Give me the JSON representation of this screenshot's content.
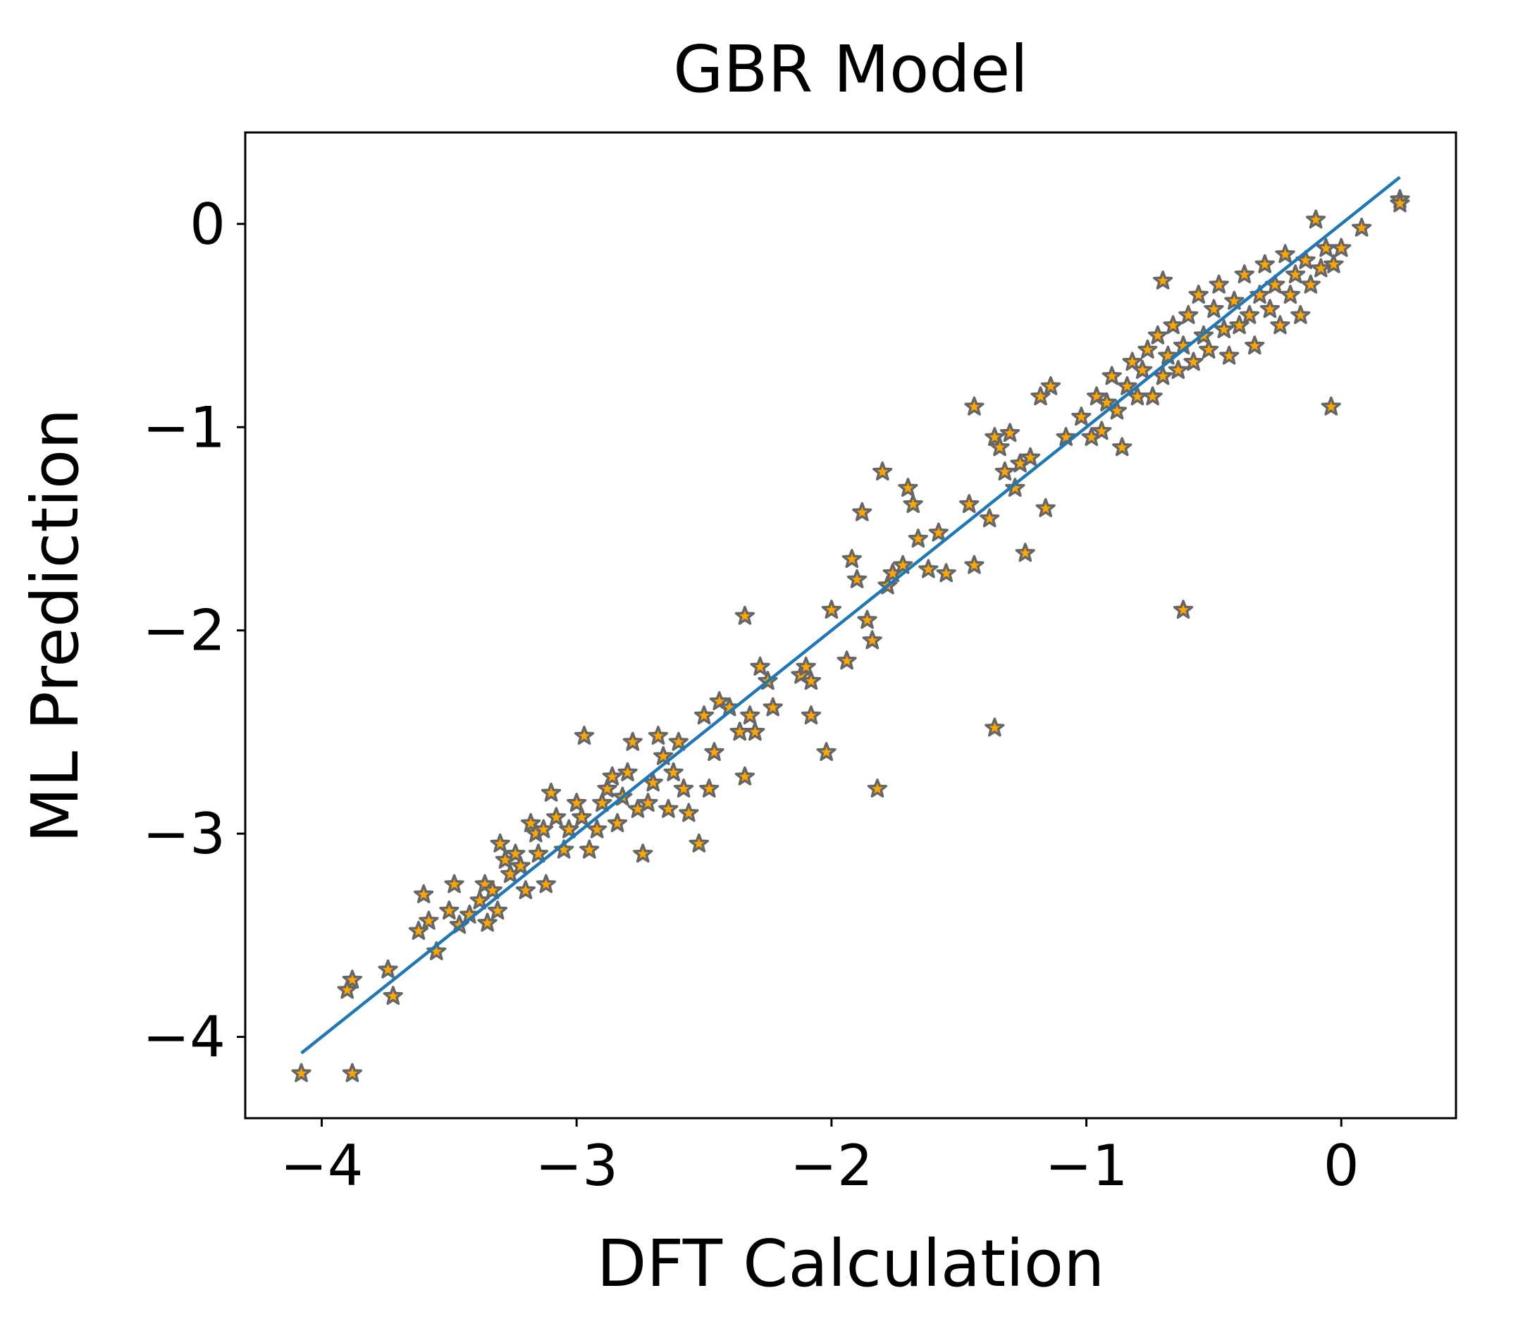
{
  "chart_data": {
    "type": "scatter",
    "title": "GBR Model",
    "xlabel": "DFT Calculation",
    "ylabel": "ML Prediction",
    "xlim": [
      -4.3,
      0.45
    ],
    "ylim": [
      -4.4,
      0.45
    ],
    "xticks": [
      -4,
      -3,
      -2,
      -1,
      0
    ],
    "yticks": [
      -4,
      -3,
      -2,
      -1,
      0
    ],
    "xtick_labels": [
      "−4",
      "−3",
      "−2",
      "−1",
      "0"
    ],
    "ytick_labels": [
      "−4",
      "−3",
      "−2",
      "−1",
      "0"
    ],
    "grid": false,
    "legend": "none",
    "marker": "star",
    "marker_fill": "#ffa500",
    "marker_edge": "#666666",
    "line_color": "#1f77b4",
    "fit_line": {
      "x": [
        -4.08,
        0.23
      ],
      "y": [
        -4.08,
        0.23
      ]
    },
    "points": [
      [
        -4.08,
        -4.18
      ],
      [
        -3.88,
        -4.18
      ],
      [
        -3.88,
        -3.72
      ],
      [
        -3.9,
        -3.77
      ],
      [
        -3.72,
        -3.8
      ],
      [
        -3.74,
        -3.67
      ],
      [
        -3.62,
        -3.48
      ],
      [
        -3.6,
        -3.3
      ],
      [
        -3.58,
        -3.43
      ],
      [
        -3.55,
        -3.58
      ],
      [
        -3.5,
        -3.38
      ],
      [
        -3.48,
        -3.25
      ],
      [
        -3.46,
        -3.45
      ],
      [
        -3.42,
        -3.4
      ],
      [
        -3.38,
        -3.33
      ],
      [
        -3.36,
        -3.25
      ],
      [
        -3.35,
        -3.44
      ],
      [
        -3.33,
        -3.28
      ],
      [
        -3.31,
        -3.38
      ],
      [
        -3.3,
        -3.05
      ],
      [
        -3.28,
        -3.13
      ],
      [
        -3.26,
        -3.2
      ],
      [
        -3.24,
        -3.1
      ],
      [
        -3.22,
        -3.16
      ],
      [
        -3.2,
        -3.28
      ],
      [
        -3.18,
        -2.95
      ],
      [
        -3.16,
        -3.0
      ],
      [
        -3.15,
        -3.1
      ],
      [
        -3.13,
        -2.98
      ],
      [
        -3.12,
        -3.25
      ],
      [
        -3.1,
        -2.8
      ],
      [
        -3.08,
        -2.92
      ],
      [
        -3.05,
        -3.08
      ],
      [
        -3.03,
        -2.98
      ],
      [
        -3.0,
        -2.85
      ],
      [
        -2.98,
        -2.92
      ],
      [
        -2.97,
        -2.52
      ],
      [
        -2.95,
        -3.08
      ],
      [
        -2.92,
        -2.98
      ],
      [
        -2.9,
        -2.85
      ],
      [
        -2.88,
        -2.78
      ],
      [
        -2.86,
        -2.72
      ],
      [
        -2.84,
        -2.95
      ],
      [
        -2.82,
        -2.82
      ],
      [
        -2.8,
        -2.7
      ],
      [
        -2.78,
        -2.55
      ],
      [
        -2.76,
        -2.88
      ],
      [
        -2.74,
        -3.1
      ],
      [
        -2.72,
        -2.85
      ],
      [
        -2.7,
        -2.75
      ],
      [
        -2.68,
        -2.52
      ],
      [
        -2.66,
        -2.62
      ],
      [
        -2.64,
        -2.88
      ],
      [
        -2.62,
        -2.7
      ],
      [
        -2.6,
        -2.55
      ],
      [
        -2.58,
        -2.78
      ],
      [
        -2.56,
        -2.9
      ],
      [
        -2.52,
        -3.05
      ],
      [
        -2.5,
        -2.42
      ],
      [
        -2.48,
        -2.78
      ],
      [
        -2.46,
        -2.6
      ],
      [
        -2.44,
        -2.35
      ],
      [
        -2.4,
        -2.38
      ],
      [
        -2.36,
        -2.5
      ],
      [
        -2.34,
        -2.72
      ],
      [
        -2.34,
        -1.93
      ],
      [
        -2.32,
        -2.42
      ],
      [
        -2.3,
        -2.5
      ],
      [
        -2.28,
        -2.18
      ],
      [
        -2.25,
        -2.25
      ],
      [
        -2.23,
        -2.38
      ],
      [
        -2.12,
        -2.22
      ],
      [
        -2.1,
        -2.18
      ],
      [
        -2.08,
        -2.25
      ],
      [
        -2.08,
        -2.42
      ],
      [
        -2.02,
        -2.6
      ],
      [
        -2.0,
        -1.9
      ],
      [
        -1.94,
        -2.15
      ],
      [
        -1.92,
        -1.65
      ],
      [
        -1.9,
        -1.75
      ],
      [
        -1.88,
        -1.42
      ],
      [
        -1.86,
        -1.95
      ],
      [
        -1.84,
        -2.05
      ],
      [
        -1.82,
        -2.78
      ],
      [
        -1.8,
        -1.22
      ],
      [
        -1.78,
        -1.78
      ],
      [
        -1.76,
        -1.72
      ],
      [
        -1.72,
        -1.68
      ],
      [
        -1.7,
        -1.3
      ],
      [
        -1.68,
        -1.38
      ],
      [
        -1.66,
        -1.55
      ],
      [
        -1.62,
        -1.7
      ],
      [
        -1.58,
        -1.52
      ],
      [
        -1.55,
        -1.72
      ],
      [
        -1.46,
        -1.38
      ],
      [
        -1.44,
        -1.68
      ],
      [
        -1.44,
        -0.9
      ],
      [
        -1.38,
        -1.45
      ],
      [
        -1.36,
        -1.05
      ],
      [
        -1.36,
        -2.48
      ],
      [
        -1.34,
        -1.1
      ],
      [
        -1.32,
        -1.22
      ],
      [
        -1.3,
        -1.03
      ],
      [
        -1.28,
        -1.3
      ],
      [
        -1.26,
        -1.18
      ],
      [
        -1.24,
        -1.62
      ],
      [
        -1.22,
        -1.15
      ],
      [
        -1.18,
        -0.85
      ],
      [
        -1.16,
        -1.4
      ],
      [
        -1.14,
        -0.8
      ],
      [
        -1.08,
        -1.05
      ],
      [
        -1.02,
        -0.95
      ],
      [
        -0.98,
        -1.05
      ],
      [
        -0.96,
        -0.85
      ],
      [
        -0.94,
        -1.02
      ],
      [
        -0.92,
        -0.88
      ],
      [
        -0.9,
        -0.75
      ],
      [
        -0.88,
        -0.92
      ],
      [
        -0.86,
        -1.1
      ],
      [
        -0.84,
        -0.8
      ],
      [
        -0.82,
        -0.68
      ],
      [
        -0.8,
        -0.85
      ],
      [
        -0.78,
        -0.72
      ],
      [
        -0.76,
        -0.62
      ],
      [
        -0.74,
        -0.85
      ],
      [
        -0.72,
        -0.55
      ],
      [
        -0.7,
        -0.75
      ],
      [
        -0.7,
        -0.28
      ],
      [
        -0.68,
        -0.65
      ],
      [
        -0.66,
        -0.5
      ],
      [
        -0.64,
        -0.72
      ],
      [
        -0.62,
        -0.6
      ],
      [
        -0.6,
        -0.45
      ],
      [
        -0.62,
        -1.9
      ],
      [
        -0.58,
        -0.68
      ],
      [
        -0.56,
        -0.35
      ],
      [
        -0.54,
        -0.55
      ],
      [
        -0.52,
        -0.62
      ],
      [
        -0.5,
        -0.42
      ],
      [
        -0.48,
        -0.3
      ],
      [
        -0.46,
        -0.52
      ],
      [
        -0.44,
        -0.65
      ],
      [
        -0.42,
        -0.38
      ],
      [
        -0.4,
        -0.5
      ],
      [
        -0.38,
        -0.25
      ],
      [
        -0.36,
        -0.45
      ],
      [
        -0.34,
        -0.6
      ],
      [
        -0.32,
        -0.35
      ],
      [
        -0.3,
        -0.2
      ],
      [
        -0.28,
        -0.42
      ],
      [
        -0.26,
        -0.3
      ],
      [
        -0.24,
        -0.5
      ],
      [
        -0.22,
        -0.15
      ],
      [
        -0.2,
        -0.35
      ],
      [
        -0.18,
        -0.25
      ],
      [
        -0.16,
        -0.45
      ],
      [
        -0.14,
        -0.18
      ],
      [
        -0.12,
        -0.3
      ],
      [
        -0.1,
        0.02
      ],
      [
        -0.08,
        -0.22
      ],
      [
        -0.06,
        -0.12
      ],
      [
        -0.04,
        -0.9
      ],
      [
        -0.03,
        -0.2
      ],
      [
        0.0,
        -0.12
      ],
      [
        0.08,
        -0.02
      ],
      [
        0.23,
        0.12
      ],
      [
        0.23,
        0.1
      ]
    ]
  }
}
